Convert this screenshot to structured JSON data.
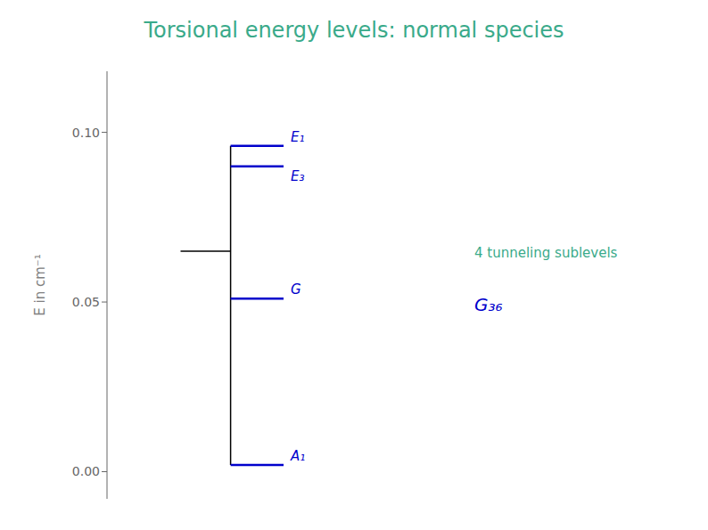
{
  "chart_data": {
    "type": "energy_levels",
    "title": "Torsional energy levels: normal species",
    "title_color": "#3aaa8a",
    "ylabel": "E in cm⁻¹",
    "ylim": [
      -0.008,
      0.118
    ],
    "yticks": [
      {
        "value": 0,
        "label": "0.00"
      },
      {
        "value": 0.05,
        "label": "0.05"
      },
      {
        "value": 0.1,
        "label": "0.10"
      }
    ],
    "parent_level": {
      "value": 0.065,
      "color": "#000000"
    },
    "series": [
      {
        "name": "E₁",
        "color": "#0000cc",
        "values": [
          0.096
        ]
      },
      {
        "name": "E₃",
        "color": "#0000cc",
        "values": [
          0.09
        ]
      },
      {
        "name": "G",
        "color": "#0000cc",
        "values": [
          0.051
        ]
      },
      {
        "name": "A₁",
        "color": "#0000cc",
        "values": [
          0.002
        ]
      }
    ],
    "annotations": [
      {
        "text": "4 tunneling sublevels",
        "color": "#3aaa8a"
      },
      {
        "text": "G₃₆",
        "color": "#0000cc"
      }
    ]
  }
}
